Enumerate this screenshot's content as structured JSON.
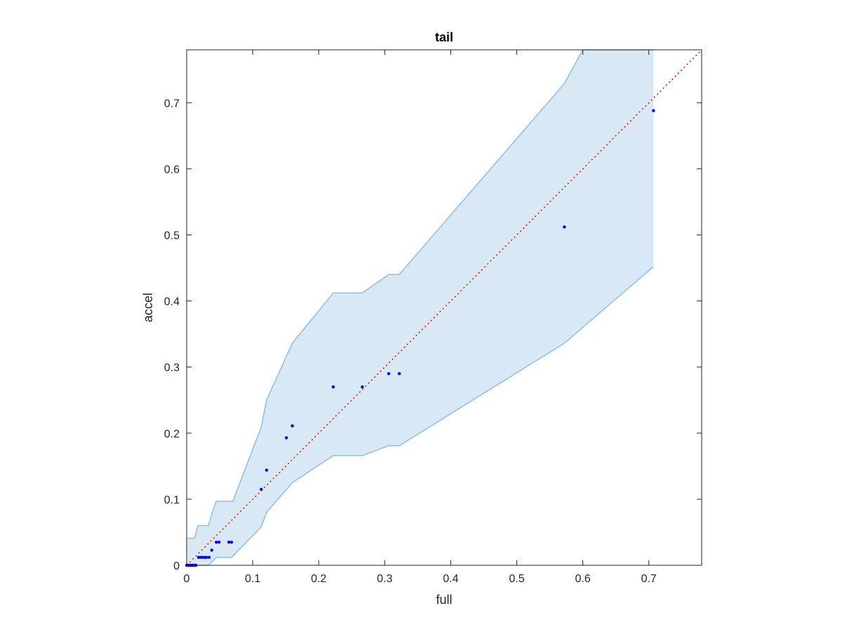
{
  "chart_data": {
    "type": "scatter",
    "title": "tail",
    "xlabel": "full",
    "ylabel": "accel",
    "xlim": [
      0,
      0.78
    ],
    "ylim": [
      0,
      0.78
    ],
    "xticks": [
      "0",
      "0.1",
      "0.2",
      "0.3",
      "0.4",
      "0.5",
      "0.6",
      "0.7"
    ],
    "yticks": [
      "0",
      "0.1",
      "0.2",
      "0.3",
      "0.4",
      "0.5",
      "0.6",
      "0.7"
    ],
    "grid": false,
    "colors": {
      "points": "#0000ff",
      "reference_line": "#ff0000",
      "band_fill": "#d9e8f5",
      "band_edge": "#8cc0de"
    },
    "points": [
      {
        "x": 0.0,
        "y": 0.0
      },
      {
        "x": 0.002,
        "y": 0.0
      },
      {
        "x": 0.004,
        "y": 0.0
      },
      {
        "x": 0.006,
        "y": 0.0
      },
      {
        "x": 0.008,
        "y": 0.0
      },
      {
        "x": 0.01,
        "y": 0.0
      },
      {
        "x": 0.012,
        "y": 0.0
      },
      {
        "x": 0.014,
        "y": 0.0
      },
      {
        "x": 0.018,
        "y": 0.012
      },
      {
        "x": 0.021,
        "y": 0.012
      },
      {
        "x": 0.024,
        "y": 0.012
      },
      {
        "x": 0.027,
        "y": 0.012
      },
      {
        "x": 0.03,
        "y": 0.012
      },
      {
        "x": 0.034,
        "y": 0.012
      },
      {
        "x": 0.038,
        "y": 0.023
      },
      {
        "x": 0.045,
        "y": 0.035
      },
      {
        "x": 0.049,
        "y": 0.035
      },
      {
        "x": 0.064,
        "y": 0.035
      },
      {
        "x": 0.068,
        "y": 0.035
      },
      {
        "x": 0.113,
        "y": 0.115
      },
      {
        "x": 0.121,
        "y": 0.144
      },
      {
        "x": 0.151,
        "y": 0.193
      },
      {
        "x": 0.16,
        "y": 0.211
      },
      {
        "x": 0.222,
        "y": 0.27
      },
      {
        "x": 0.266,
        "y": 0.27
      },
      {
        "x": 0.306,
        "y": 0.29
      },
      {
        "x": 0.322,
        "y": 0.29
      },
      {
        "x": 0.572,
        "y": 0.512
      },
      {
        "x": 0.707,
        "y": 0.688
      }
    ],
    "reference_line": {
      "x": [
        0,
        0.78
      ],
      "y": [
        0,
        0.78
      ]
    },
    "band_upper": [
      {
        "x": 0.0,
        "y": 0.041
      },
      {
        "x": 0.012,
        "y": 0.041
      },
      {
        "x": 0.017,
        "y": 0.06
      },
      {
        "x": 0.033,
        "y": 0.06
      },
      {
        "x": 0.038,
        "y": 0.078
      },
      {
        "x": 0.045,
        "y": 0.097
      },
      {
        "x": 0.07,
        "y": 0.097
      },
      {
        "x": 0.113,
        "y": 0.209
      },
      {
        "x": 0.121,
        "y": 0.25
      },
      {
        "x": 0.16,
        "y": 0.336
      },
      {
        "x": 0.222,
        "y": 0.412
      },
      {
        "x": 0.266,
        "y": 0.412
      },
      {
        "x": 0.306,
        "y": 0.44
      },
      {
        "x": 0.322,
        "y": 0.44
      },
      {
        "x": 0.572,
        "y": 0.729
      },
      {
        "x": 0.6,
        "y": 0.78
      },
      {
        "x": 0.707,
        "y": 0.78
      }
    ],
    "band_lower": [
      {
        "x": 0.0,
        "y": 0.0
      },
      {
        "x": 0.033,
        "y": 0.0
      },
      {
        "x": 0.045,
        "y": 0.012
      },
      {
        "x": 0.068,
        "y": 0.012
      },
      {
        "x": 0.113,
        "y": 0.058
      },
      {
        "x": 0.121,
        "y": 0.08
      },
      {
        "x": 0.16,
        "y": 0.125
      },
      {
        "x": 0.222,
        "y": 0.166
      },
      {
        "x": 0.266,
        "y": 0.166
      },
      {
        "x": 0.306,
        "y": 0.181
      },
      {
        "x": 0.322,
        "y": 0.181
      },
      {
        "x": 0.572,
        "y": 0.336
      },
      {
        "x": 0.707,
        "y": 0.452
      }
    ]
  }
}
